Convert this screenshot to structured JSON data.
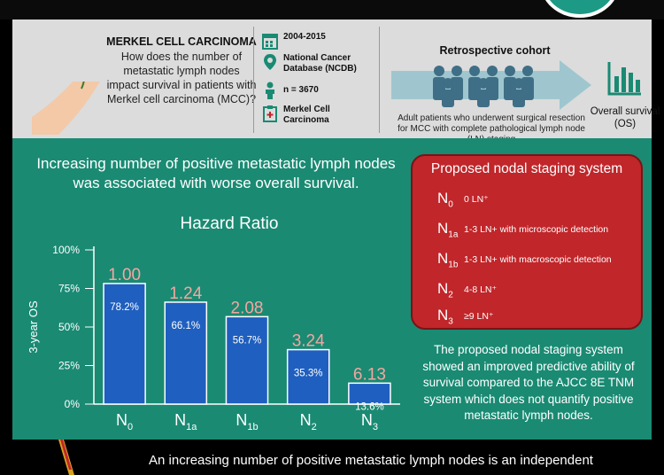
{
  "header": {
    "question_title": "MERKEL CELL CARCINOMA",
    "question_text": "How does the number of metastatic lymph nodes impact survival in patients with Merkel cell carcinoma (MCC)?",
    "info": [
      {
        "icon": "calendar-icon",
        "text": "2004-2015"
      },
      {
        "icon": "location-pin-icon",
        "text": "National Cancer Database (NCDB)"
      },
      {
        "icon": "person-icon",
        "text": "n = 3670"
      },
      {
        "icon": "clipboard-icon",
        "text": "Merkel Cell Carcinoma"
      }
    ],
    "cohort_title": "Retrospective cohort",
    "cohort_text": "Adult patients who underwent surgical resection for MCC with complete pathological lymph node (LN) staging",
    "outcome_label": "Overall survival (OS)"
  },
  "main": {
    "title": "Increasing number of positive metastatic lymph nodes was associated with worse overall survival.",
    "staging_title": "Proposed nodal staging system",
    "stages": [
      {
        "code": "N",
        "sub": "0",
        "desc": "0 LN⁺"
      },
      {
        "code": "N",
        "sub": "1a",
        "desc": "1-3 LN+ with microscopic detection"
      },
      {
        "code": "N",
        "sub": "1b",
        "desc": "1-3 LN+ with macroscopic detection"
      },
      {
        "code": "N",
        "sub": "2",
        "desc": "4-8 LN⁺"
      },
      {
        "code": "N",
        "sub": "3",
        "desc": "≥9 LN⁺"
      }
    ],
    "note": "The proposed nodal staging system showed an improved predictive ability of survival compared to the AJCC 8E TNM system which does not quantify positive metastatic lymph nodes."
  },
  "bottom": {
    "text": "An increasing number of positive metastatic lymph nodes is an independent"
  },
  "colors": {
    "header_bg": "#dcdcdc",
    "main_bg": "#1a8a73",
    "bar": "#1f5fbf",
    "staging_bg": "#c0262a",
    "hazard_label": "#f4a7a0"
  },
  "chart_data": {
    "type": "bar",
    "title": "Hazard Ratio",
    "ylabel": "3-year OS",
    "ylim": [
      0,
      100
    ],
    "yticks": [
      "0%",
      "25%",
      "50%",
      "75%",
      "100%"
    ],
    "categories": [
      {
        "base": "N",
        "sub": "0"
      },
      {
        "base": "N",
        "sub": "1a"
      },
      {
        "base": "N",
        "sub": "1b"
      },
      {
        "base": "N",
        "sub": "2"
      },
      {
        "base": "N",
        "sub": "3"
      }
    ],
    "values": [
      78.2,
      66.1,
      56.7,
      35.3,
      13.6
    ],
    "value_labels": [
      "78.2%",
      "66.1%",
      "56.7%",
      "35.3%",
      "13.6%"
    ],
    "hazard_ratios": [
      "1.00",
      "1.24",
      "2.08",
      "3.24",
      "6.13"
    ]
  }
}
